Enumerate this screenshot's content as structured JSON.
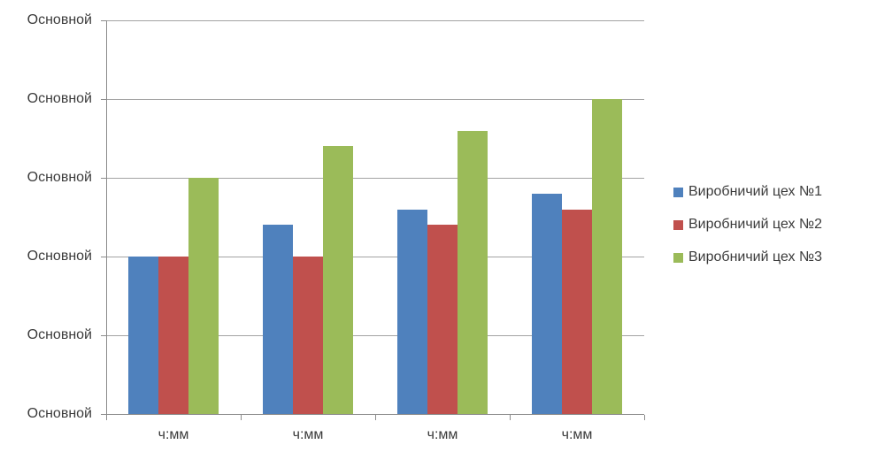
{
  "chart_data": {
    "type": "bar",
    "title": "",
    "xlabel": "",
    "ylabel": "",
    "categories": [
      "ч:мм",
      "ч:мм",
      "ч:мм",
      "ч:мм"
    ],
    "y_tick_labels": [
      "Основной",
      "Основной",
      "Основной",
      "Основной",
      "Основной",
      "Основной"
    ],
    "ylim": [
      0,
      5
    ],
    "y_tick_step": 1,
    "grid": true,
    "legend_position": "right",
    "series": [
      {
        "name": "Виробничий цех №1",
        "color": "#4F81BD",
        "values": [
          2.0,
          2.4,
          2.6,
          2.8
        ]
      },
      {
        "name": "Виробничий цех №2",
        "color": "#C0504D",
        "values": [
          2.0,
          2.0,
          2.4,
          2.6
        ]
      },
      {
        "name": "Виробничий цех №3",
        "color": "#9BBB59",
        "values": [
          3.0,
          3.4,
          3.6,
          4.0
        ]
      }
    ],
    "colors": {
      "gridline": "#A3A3A3",
      "axis": "#8C8C8C",
      "text": "#3B3B3B",
      "background": "#FFFFFF"
    }
  }
}
